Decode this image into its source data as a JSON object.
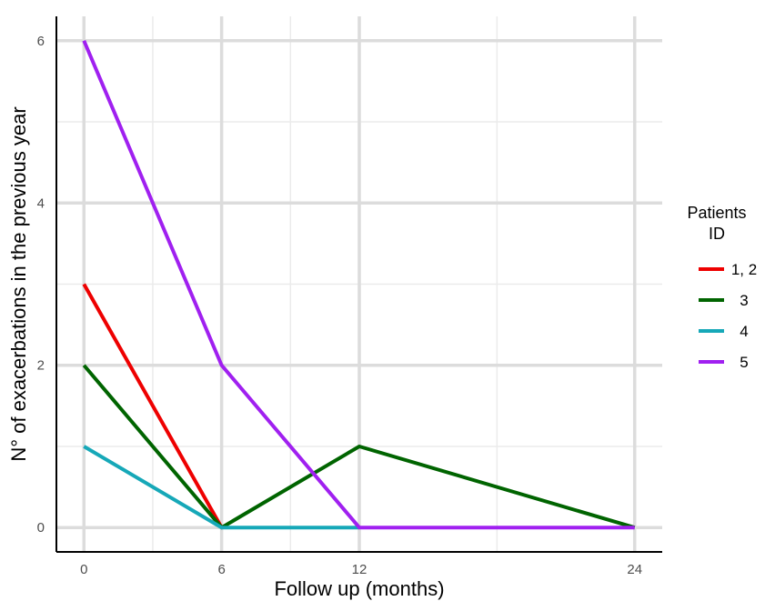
{
  "chart_data": {
    "type": "line",
    "xlabel": "Follow up (months)",
    "ylabel": "N° of exacerbations in the previous year",
    "x_ticks": [
      0,
      6,
      12,
      24
    ],
    "y_ticks": [
      0,
      2,
      4,
      6
    ],
    "xlim": [
      -1.2,
      25.2
    ],
    "ylim": [
      -0.3,
      6.3
    ],
    "grid": true,
    "legend": {
      "title_lines": [
        "Patients",
        "ID"
      ],
      "placement": "right"
    },
    "series": [
      {
        "name": "1, 2",
        "color": "#ee0000",
        "x": [
          0,
          6
        ],
        "y": [
          3,
          0
        ]
      },
      {
        "name": "3",
        "color": "#006400",
        "x": [
          0,
          6,
          12,
          24
        ],
        "y": [
          2,
          0,
          1,
          0
        ]
      },
      {
        "name": "4",
        "color": "#16a8b8",
        "x": [
          0,
          6,
          12
        ],
        "y": [
          1,
          0,
          0
        ]
      },
      {
        "name": "5",
        "color": "#a020f0",
        "x": [
          0,
          6,
          12,
          24
        ],
        "y": [
          6,
          2,
          0,
          0
        ]
      }
    ]
  }
}
